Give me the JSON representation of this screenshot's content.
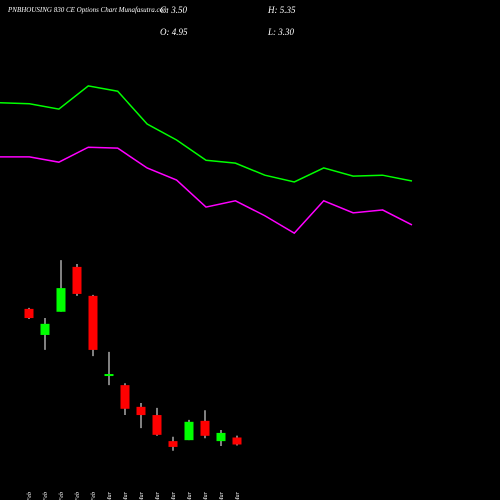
{
  "chart_data": [
    {
      "type": "candlestick",
      "title": "PNBHOUSING 830 CE Options Chart Munafasutra.com",
      "stats": {
        "close": "C: 3.50",
        "high": "H: 5.35",
        "open": "O: 4.95",
        "low": "L: 3.30"
      },
      "categories": [
        "23 Feb",
        "24 Feb",
        "25 Feb",
        "26 Feb",
        "27 Feb",
        "02 Mar",
        "03 Mar",
        "04 Mar",
        "05 Mar",
        "06 Mar",
        "09 Mar",
        "10 Mar",
        "11 Mar",
        "12 Mar"
      ],
      "open": [
        31.6,
        26.2,
        31.0,
        40.3,
        34.3,
        17.7,
        15.8,
        11.3,
        9.6,
        4.2,
        4.4,
        8.4,
        4.2,
        4.95
      ],
      "high": [
        31.8,
        29.7,
        41.7,
        40.9,
        34.5,
        22.7,
        16.2,
        12.1,
        11.1,
        5.1,
        8.6,
        10.6,
        6.5,
        5.35
      ],
      "low": [
        29.5,
        23.1,
        31.0,
        34.3,
        21.8,
        15.8,
        9.6,
        6.9,
        5.3,
        2.2,
        4.4,
        4.8,
        3.2,
        3.3
      ],
      "close": [
        29.7,
        28.5,
        35.9,
        34.7,
        23.1,
        18.1,
        10.9,
        9.6,
        5.5,
        3.0,
        8.2,
        5.3,
        5.9,
        3.5
      ],
      "up_color": "#00ff00",
      "down_color": "#ff0000",
      "ylim": [
        -8,
        95.6
      ]
    },
    {
      "type": "line",
      "series": [
        {
          "color": "#00ff00",
          "values": [
            74.3,
            74.1,
            73.0,
            77.8,
            76.7,
            69.9,
            66.6,
            62.4,
            61.8,
            59.3,
            57.9,
            60.8,
            59.1,
            59.3,
            58.1
          ]
        },
        {
          "color": "#ff00ff",
          "values": [
            63.1,
            63.1,
            62.0,
            65.1,
            64.9,
            60.8,
            58.3,
            52.7,
            54.0,
            50.9,
            47.3,
            54.0,
            51.5,
            52.1,
            49.0
          ]
        }
      ],
      "ylim": [
        -8,
        95.6
      ]
    }
  ]
}
